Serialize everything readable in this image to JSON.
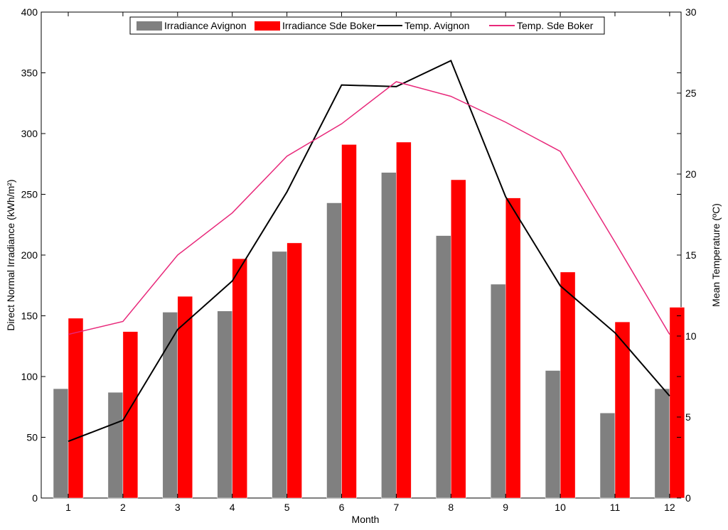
{
  "chart_data": {
    "type": "bar",
    "categories": [
      "1",
      "2",
      "3",
      "4",
      "5",
      "6",
      "7",
      "8",
      "9",
      "10",
      "11",
      "12"
    ],
    "xlabel": "Month",
    "ylabel": "Direct Normal Irradiance (kWh/m²)",
    "y2label": "Mean Temperature (ºC)",
    "ylim": [
      0,
      400
    ],
    "y2lim": [
      0,
      30
    ],
    "yticks": [
      "0",
      "50",
      "100",
      "150",
      "200",
      "250",
      "300",
      "350",
      "400"
    ],
    "y2ticks": [
      "0",
      "5",
      "10",
      "15",
      "20",
      "25",
      "30"
    ],
    "legend_position": "top",
    "grid": false,
    "series": [
      {
        "name": "Irradiance Avignon",
        "kind": "bar",
        "axis": "left",
        "color": "#808080",
        "values": [
          90,
          87,
          153,
          154,
          203,
          243,
          268,
          216,
          176,
          105,
          70,
          90
        ]
      },
      {
        "name": "Irradiance Sde Boker",
        "kind": "bar",
        "axis": "left",
        "color": "#ff0000",
        "values": [
          148,
          137,
          166,
          197,
          210,
          291,
          293,
          262,
          247,
          186,
          145,
          157
        ]
      },
      {
        "name": "Temp. Avignon",
        "kind": "line",
        "axis": "right",
        "color": "#000000",
        "values": [
          3.5,
          4.8,
          10.4,
          13.4,
          18.9,
          25.5,
          25.4,
          27.0,
          18.6,
          13.1,
          10.2,
          6.3
        ]
      },
      {
        "name": "Temp. Sde Boker",
        "kind": "line",
        "axis": "right",
        "color": "#e8287a",
        "values": [
          10.1,
          10.9,
          15.0,
          17.6,
          21.1,
          23.1,
          25.7,
          24.8,
          23.2,
          21.4,
          15.8,
          10.1
        ]
      }
    ]
  }
}
